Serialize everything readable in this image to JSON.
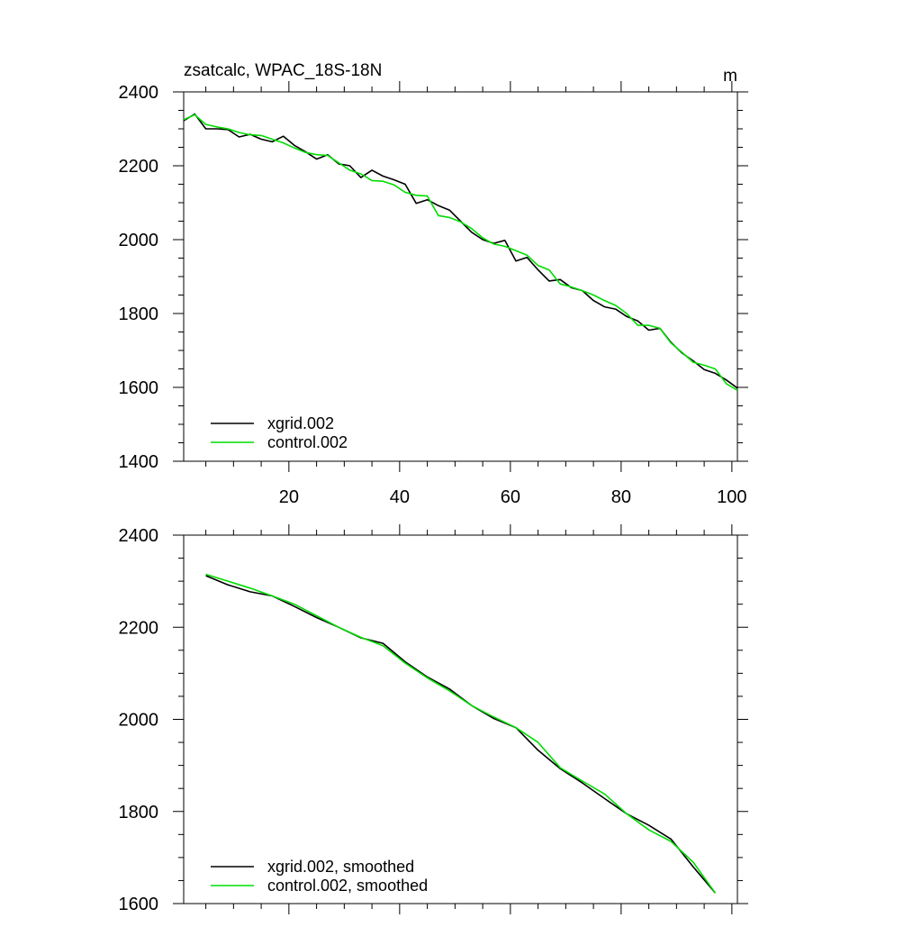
{
  "chart_data": [
    {
      "type": "line",
      "title": "zsatcalc, WPAC_18S-18N",
      "units": "m",
      "xlim": [
        1,
        101
      ],
      "ylim": [
        1400,
        2400
      ],
      "xticks": [
        20,
        40,
        60,
        80,
        100
      ],
      "xtick_labels": [
        "20",
        "40",
        "60",
        "80",
        "100"
      ],
      "yticks": [
        1400,
        1600,
        1800,
        2000,
        2200,
        2400
      ],
      "ytick_labels": [
        "1400",
        "1600",
        "1800",
        "2000",
        "2200",
        "2400"
      ],
      "legend": "bottom-left",
      "series": [
        {
          "name": "xgrid.002",
          "color": "#000000",
          "x": [
            1,
            3,
            5,
            7,
            9,
            11,
            13,
            15,
            17,
            19,
            21,
            23,
            25,
            27,
            29,
            31,
            33,
            35,
            37,
            39,
            41,
            43,
            45,
            47,
            49,
            51,
            53,
            55,
            57,
            59,
            61,
            63,
            65,
            67,
            69,
            71,
            73,
            75,
            77,
            79,
            81,
            83,
            85,
            87,
            89,
            91,
            93,
            95,
            97,
            99,
            101
          ],
          "values": [
            2322,
            2340,
            2300,
            2300,
            2298,
            2278,
            2285,
            2272,
            2265,
            2280,
            2255,
            2238,
            2218,
            2230,
            2205,
            2200,
            2168,
            2188,
            2172,
            2162,
            2150,
            2098,
            2108,
            2092,
            2080,
            2050,
            2020,
            2000,
            1990,
            1998,
            1942,
            1952,
            1918,
            1888,
            1892,
            1870,
            1862,
            1835,
            1818,
            1812,
            1792,
            1780,
            1755,
            1760,
            1722,
            1693,
            1672,
            1648,
            1638,
            1620,
            1598
          ]
        },
        {
          "name": "control.002",
          "color": "#00dd00",
          "x": [
            1,
            3,
            5,
            7,
            9,
            11,
            13,
            15,
            17,
            19,
            21,
            23,
            25,
            27,
            29,
            31,
            33,
            35,
            37,
            39,
            41,
            43,
            45,
            47,
            49,
            51,
            53,
            55,
            57,
            59,
            61,
            63,
            65,
            67,
            69,
            71,
            73,
            75,
            77,
            79,
            81,
            83,
            85,
            87,
            89,
            91,
            93,
            95,
            97,
            99,
            101
          ],
          "values": [
            2325,
            2338,
            2312,
            2305,
            2300,
            2290,
            2284,
            2282,
            2272,
            2262,
            2248,
            2236,
            2230,
            2228,
            2208,
            2188,
            2178,
            2160,
            2158,
            2148,
            2128,
            2120,
            2118,
            2065,
            2060,
            2048,
            2030,
            2005,
            1988,
            1982,
            1970,
            1958,
            1930,
            1918,
            1880,
            1872,
            1862,
            1850,
            1835,
            1822,
            1800,
            1768,
            1768,
            1760,
            1720,
            1695,
            1668,
            1660,
            1650,
            1610,
            1592
          ]
        }
      ]
    },
    {
      "type": "line",
      "title": "",
      "xlim": [
        1,
        101
      ],
      "ylim": [
        1600,
        2400
      ],
      "xticks": [
        20,
        40,
        60,
        80,
        100
      ],
      "yticks": [
        1600,
        1800,
        2000,
        2200,
        2400
      ],
      "ytick_labels": [
        "1600",
        "1800",
        "2000",
        "2200",
        "2400"
      ],
      "legend": "bottom-left",
      "series": [
        {
          "name": "xgrid.002, smoothed",
          "color": "#000000",
          "x": [
            5,
            9,
            13,
            17,
            21,
            25,
            29,
            33,
            37,
            41,
            45,
            49,
            53,
            57,
            61,
            65,
            69,
            73,
            77,
            81,
            85,
            89,
            93,
            97
          ],
          "values": [
            2312,
            2292,
            2277,
            2268,
            2245,
            2221,
            2200,
            2177,
            2165,
            2125,
            2092,
            2066,
            2030,
            2002,
            1982,
            1933,
            1893,
            1862,
            1828,
            1795,
            1770,
            1740,
            1680,
            1623
          ]
        },
        {
          "name": "control.002, smoothed",
          "color": "#00dd00",
          "x": [
            5,
            9,
            13,
            17,
            21,
            25,
            29,
            33,
            37,
            41,
            45,
            49,
            53,
            57,
            61,
            65,
            69,
            73,
            77,
            81,
            85,
            89,
            93,
            97
          ],
          "values": [
            2315,
            2300,
            2285,
            2268,
            2250,
            2225,
            2200,
            2178,
            2160,
            2122,
            2090,
            2062,
            2030,
            2005,
            1982,
            1950,
            1895,
            1866,
            1838,
            1795,
            1760,
            1735,
            1690,
            1623
          ]
        }
      ]
    }
  ]
}
